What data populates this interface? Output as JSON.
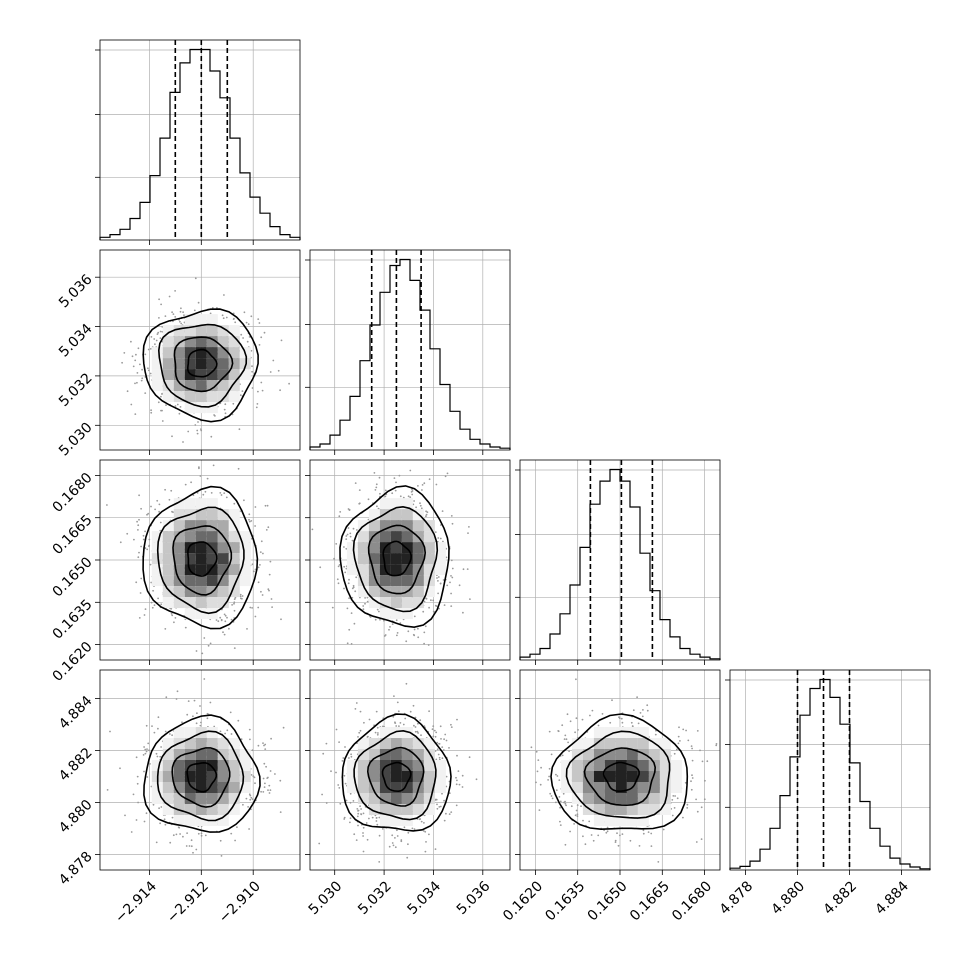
{
  "chart_data": {
    "type": "corner",
    "parameters": [
      {
        "range": [
          -2.9159,
          -2.9082
        ],
        "ticks": [
          -2.914,
          -2.912,
          -2.91
        ],
        "tick_labels": [
          "−2.914",
          "−2.912",
          "−2.910"
        ],
        "quantiles": [
          -2.913,
          -2.912,
          -2.911
        ],
        "hist_counts": [
          0.5,
          1.0,
          2.0,
          4.0,
          7.0,
          12.0,
          19.0,
          27.5,
          33.0,
          35.5,
          35.5,
          31.5,
          26.5,
          19.0,
          12.5,
          8.0,
          5.0,
          2.5,
          1.0,
          0.5
        ]
      },
      {
        "range": [
          5.029,
          5.0371
        ],
        "ticks": [
          5.03,
          5.032,
          5.034,
          5.036
        ],
        "tick_labels": [
          "5.030",
          "5.032",
          "5.034",
          "5.036"
        ],
        "quantiles": [
          5.0315,
          5.0325,
          5.0335
        ],
        "hist_counts": [
          0.5,
          1.0,
          2.5,
          5.0,
          9.0,
          15.0,
          21.0,
          26.5,
          31.0,
          32.0,
          28.5,
          23.5,
          17.0,
          11.0,
          6.5,
          3.5,
          1.8,
          1.0,
          0.5,
          0.3
        ]
      },
      {
        "range": [
          0.16145,
          0.16855
        ],
        "ticks": [
          0.162,
          0.1635,
          0.165,
          0.1665,
          0.168
        ],
        "tick_labels": [
          "0.1620",
          "0.1635",
          "0.1650",
          "0.1665",
          "0.1680"
        ],
        "quantiles": [
          0.16395,
          0.16505,
          0.16615
        ],
        "hist_counts": [
          0.5,
          1.0,
          2.0,
          4.5,
          8.0,
          13.0,
          19.5,
          27.0,
          31.0,
          33.0,
          31.0,
          26.5,
          18.5,
          12.0,
          7.0,
          4.0,
          2.0,
          1.0,
          0.5,
          0.2
        ]
      },
      {
        "range": [
          4.8774,
          4.8851
        ],
        "ticks": [
          4.878,
          4.88,
          4.882,
          4.884
        ],
        "tick_labels": [
          "4.878",
          "4.880",
          "4.882",
          "4.884"
        ],
        "quantiles": [
          4.88,
          4.881,
          4.882
        ],
        "hist_counts": [
          0.3,
          0.6,
          1.5,
          3.5,
          7.0,
          12.5,
          19.0,
          26.0,
          30.5,
          32.0,
          29.0,
          24.5,
          18.0,
          11.5,
          7.0,
          4.0,
          2.0,
          1.0,
          0.5,
          0.2
        ]
      }
    ],
    "grid": true,
    "diagonal": "1D histograms with dashed quantile lines",
    "off_diagonal": "2D density with scatter points and contours"
  }
}
